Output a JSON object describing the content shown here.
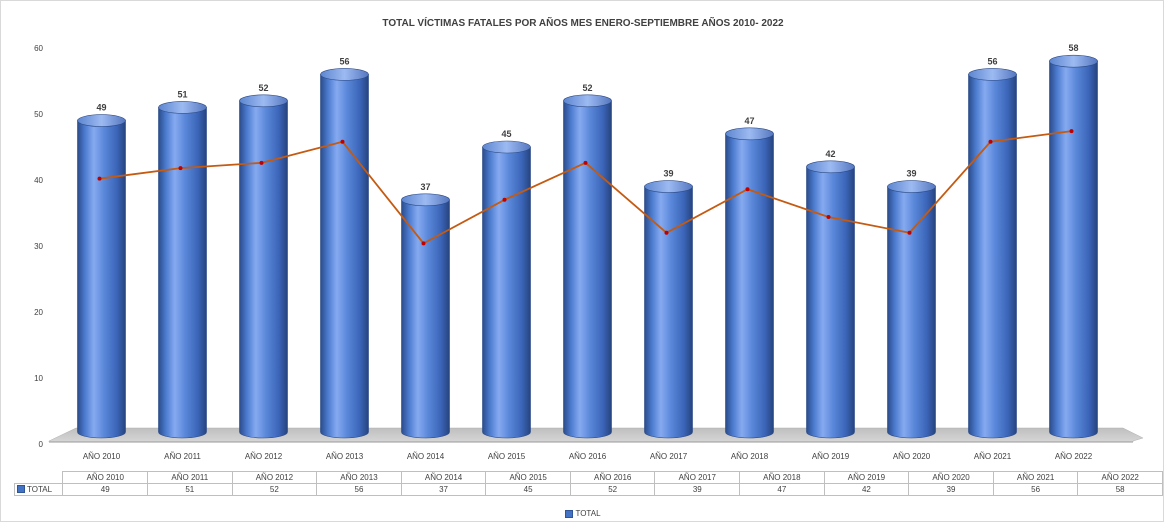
{
  "chart_data": {
    "type": "bar",
    "title": "TOTAL VÍCTIMAS FATALES  POR AÑOS MES ENERO-SEPTIEMBRE AÑOS 2010- 2022",
    "categories": [
      "AÑO 2010",
      "AÑO 2011",
      "AÑO 2012",
      "AÑO 2013",
      "AÑO 2014",
      "AÑO 2015",
      "AÑO 2016",
      "AÑO 2017",
      "AÑO 2018",
      "AÑO 2019",
      "AÑO 2020",
      "AÑO 2021",
      "AÑO 2022"
    ],
    "series": [
      {
        "name": "TOTAL",
        "type": "bar",
        "values": [
          49,
          51,
          52,
          56,
          37,
          45,
          52,
          39,
          47,
          42,
          39,
          56,
          58
        ],
        "color": "#4472c4"
      },
      {
        "type": "line",
        "values": [
          40.2,
          41.8,
          42.6,
          45.8,
          30.4,
          37.0,
          42.6,
          32.0,
          38.6,
          34.4,
          32.0,
          45.8,
          47.4
        ],
        "color": "#c55a11"
      }
    ],
    "ylim": [
      0,
      60
    ],
    "yticks": [
      0,
      10,
      20,
      30,
      40,
      50,
      60
    ],
    "xlabel": "",
    "ylabel": "",
    "grid": false,
    "legend": "bottom",
    "data_table": true
  }
}
